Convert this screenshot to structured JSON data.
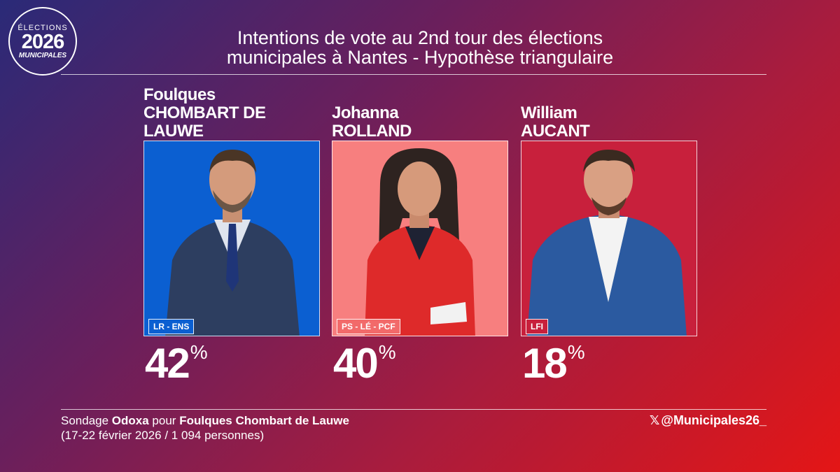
{
  "logo": {
    "line1": "ÉLECTIONS",
    "line2": "2026",
    "line3": "MUNICIPALES"
  },
  "title_line1": "Intentions de vote au 2nd tour des élections",
  "title_line2": "municipales à Nantes - Hypothèse triangulaire",
  "candidates": [
    {
      "first": "Foulques",
      "last": "CHOMBART DE LAUWE",
      "party": "LR - ENS",
      "percent": "42",
      "color": "#0b5fd1",
      "party_bg": "#0b5fd1"
    },
    {
      "first": "Johanna",
      "last": "ROLLAND",
      "party": "PS - LÉ - PCF",
      "percent": "40",
      "color": "#f77f7f",
      "party_bg": "#f26a6a"
    },
    {
      "first": "William",
      "last": "AUCANT",
      "party": "LFI",
      "percent": "18",
      "color": "#c8203c",
      "party_bg": "#c8203c"
    }
  ],
  "percent_symbol": "%",
  "footer": {
    "prefix": "Sondage ",
    "pollster": "Odoxa",
    "middle": " pour ",
    "sponsor": "Foulques Chombart de Lauwe",
    "details": "(17-22 février 2026 / 1 094 personnes)"
  },
  "handle": {
    "icon": "x-logo-icon",
    "glyph": "𝕏",
    "text": "@Municipales26_"
  }
}
